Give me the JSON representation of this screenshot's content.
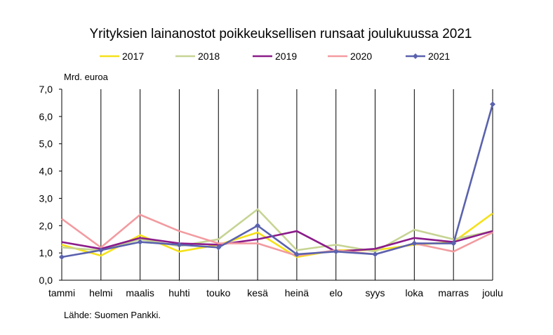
{
  "chart_data": {
    "type": "line",
    "title": "Yrityksien lainanostot poikkeuksellisen runsaat joulukuussa 2021",
    "ylabel": "Mrd. euroa",
    "xlabel": "",
    "ylim": [
      0,
      7
    ],
    "y_ticks": [
      "0,0",
      "1,0",
      "2,0",
      "3,0",
      "4,0",
      "5,0",
      "6,0",
      "7,0"
    ],
    "categories": [
      "tammi",
      "helmi",
      "maalis",
      "huhti",
      "touko",
      "kesä",
      "heinä",
      "elo",
      "syys",
      "loka",
      "marras",
      "joulu"
    ],
    "legend_position": "top",
    "grid": "vertical",
    "series": [
      {
        "name": "2017",
        "color": "#f5e11a",
        "marker": "none",
        "values": [
          1.3,
          0.9,
          1.65,
          1.05,
          1.3,
          1.75,
          0.85,
          1.1,
          1.1,
          1.3,
          1.4,
          2.45
        ]
      },
      {
        "name": "2018",
        "color": "#c6d494",
        "marker": "none",
        "values": [
          1.2,
          1.1,
          1.5,
          1.25,
          1.5,
          2.6,
          1.1,
          1.3,
          1.05,
          1.85,
          1.5,
          1.8
        ]
      },
      {
        "name": "2019",
        "color": "#8b1c8a",
        "marker": "none",
        "values": [
          1.4,
          1.15,
          1.55,
          1.35,
          1.3,
          1.5,
          1.8,
          1.05,
          1.15,
          1.55,
          1.4,
          1.8
        ]
      },
      {
        "name": "2020",
        "color": "#f29ba0",
        "marker": "none",
        "values": [
          2.25,
          1.2,
          2.4,
          1.8,
          1.35,
          1.35,
          0.9,
          1.1,
          0.95,
          1.35,
          1.05,
          1.75
        ]
      },
      {
        "name": "2021",
        "color": "#5a62ad",
        "marker": "diamond",
        "values": [
          0.85,
          1.1,
          1.4,
          1.3,
          1.2,
          2.0,
          0.95,
          1.05,
          0.95,
          1.35,
          1.35,
          6.45
        ]
      }
    ]
  },
  "source": "Lähde: Suomen Pankki."
}
